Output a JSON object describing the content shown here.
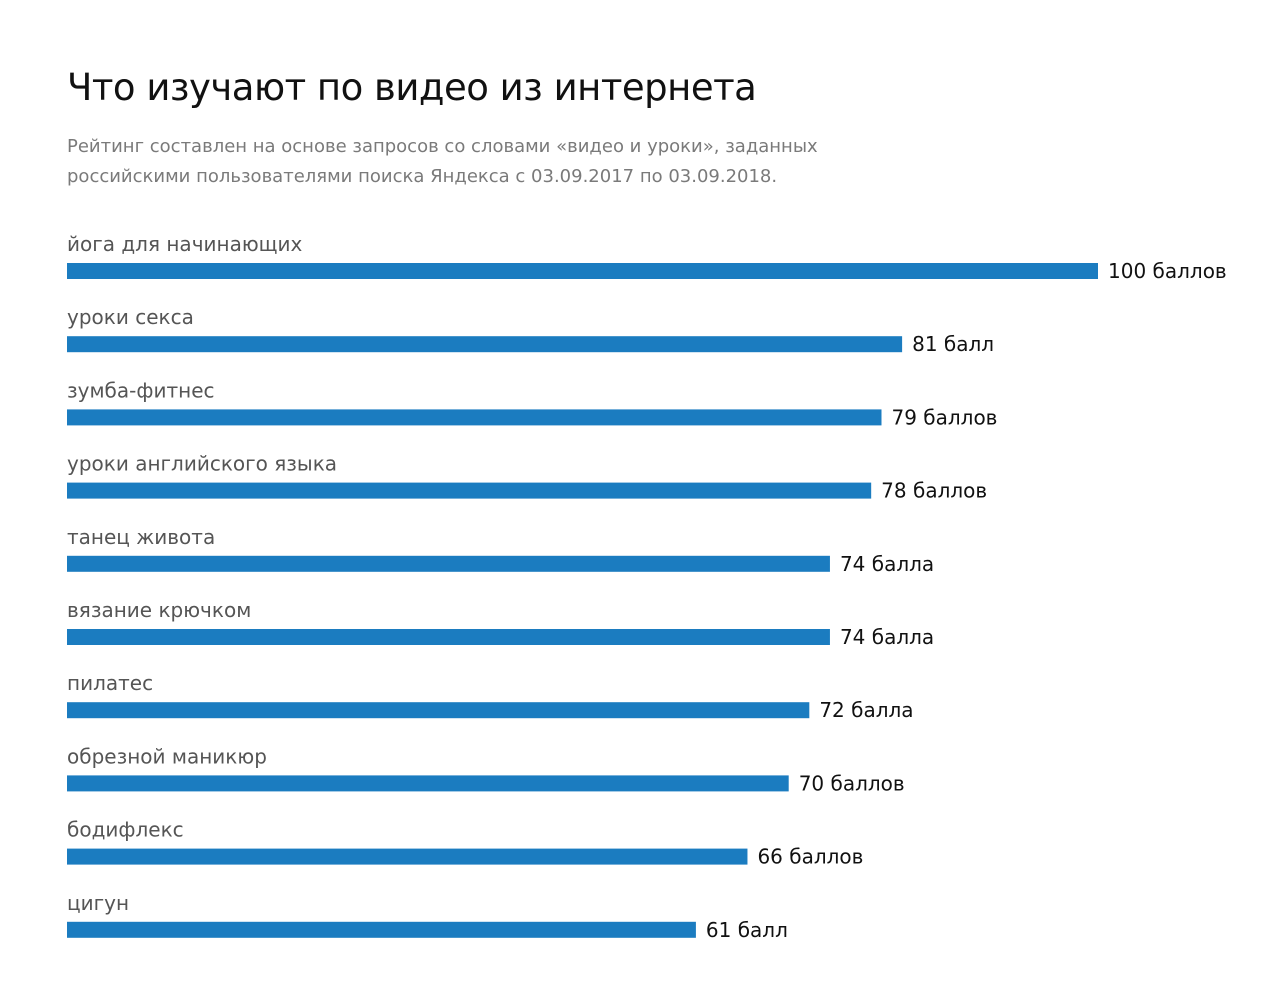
{
  "header": {
    "title": "Что изучают по видео из интернета",
    "subtitle": "Рейтинг составлен на основе запросов со словами «видео и уроки», заданных российскими пользователями поиска Яндекса с 03.09.2017 по 03.09.2018."
  },
  "colors": {
    "bar": "#1b7cc0"
  },
  "chart_data": {
    "type": "bar",
    "orientation": "horizontal",
    "categories": [
      "йога для начинающих",
      "уроки секса",
      "зумба-фитнес",
      "уроки английского языка",
      "танец живота",
      "вязание крючком",
      "пилатес",
      "обрезной маникюр",
      "бодифлекс",
      "цигун"
    ],
    "values": [
      100,
      81,
      79,
      78,
      74,
      74,
      72,
      70,
      66,
      61
    ],
    "value_labels": [
      "100 баллов",
      "81 балл",
      "79 баллов",
      "78 баллов",
      "74 балла",
      "74 балла",
      "72 балла",
      "70 баллов",
      "66 баллов",
      "61 балл"
    ],
    "title": "Что изучают по видео из интернета",
    "xlim": [
      0,
      100
    ],
    "grid": false,
    "legend": "none"
  }
}
